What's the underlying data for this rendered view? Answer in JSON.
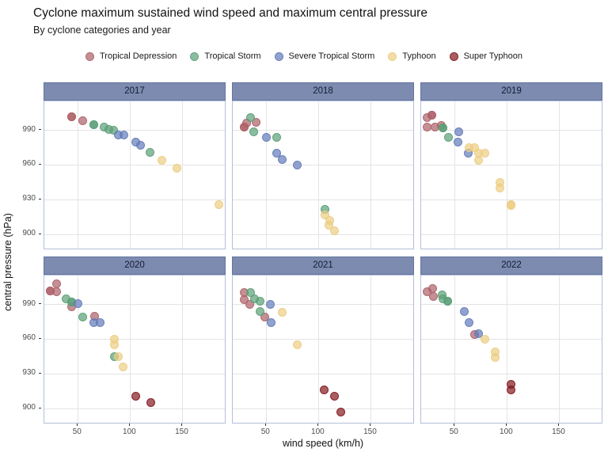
{
  "title": "Cyclone maximum sustained wind speed and maximum central pressure",
  "subtitle": "By cyclone categories and year",
  "colors": {
    "strip_fill": "#7d8bb0",
    "strip_border": "#64749f",
    "panel_border": "#b3bed9",
    "gridline": "#e4e4e4",
    "background": "#ffffff",
    "tick": "#333333"
  },
  "chart_data": {
    "type": "scatter",
    "x_label": "wind speed (km/h)",
    "y_label": "central pressure (hPa)",
    "x_ticks": [
      50,
      100,
      150
    ],
    "y_ticks": [
      990,
      960,
      930,
      900
    ],
    "x_domain": [
      18,
      192
    ],
    "y_domain": [
      886.5,
      1015
    ],
    "grid": "major-only",
    "legend_position": "top",
    "categories": [
      {
        "key": "td",
        "label": "Tropical Depression",
        "color": "#ad6168"
      },
      {
        "key": "ts",
        "label": "Tropical Storm",
        "color": "#5b9f77"
      },
      {
        "key": "sts",
        "label": "Severe Tropical Storm",
        "color": "#637bb9"
      },
      {
        "key": "ty",
        "label": "Typhoon",
        "color": "#eccd82"
      },
      {
        "key": "sty",
        "label": "Super Typhoon",
        "color": "#831a20"
      }
    ],
    "facets": [
      {
        "year": "2017",
        "points": [
          [
            44,
            1002,
            "td"
          ],
          [
            44,
            1002,
            "td"
          ],
          [
            55,
            998,
            "td"
          ],
          [
            65,
            995,
            "ts"
          ],
          [
            65,
            995,
            "ts"
          ],
          [
            75,
            993,
            "ts"
          ],
          [
            80,
            991,
            "ts"
          ],
          [
            84,
            990,
            "ts"
          ],
          [
            119,
            971,
            "ts"
          ],
          [
            89,
            986,
            "sts"
          ],
          [
            94,
            986,
            "sts"
          ],
          [
            105,
            980,
            "sts"
          ],
          [
            110,
            977,
            "sts"
          ],
          [
            130,
            964,
            "ty"
          ],
          [
            145,
            957,
            "ty"
          ],
          [
            185,
            926,
            "ty"
          ]
        ]
      },
      {
        "year": "2018",
        "points": [
          [
            29,
            993,
            "td"
          ],
          [
            29,
            993,
            "td"
          ],
          [
            31,
            996,
            "td"
          ],
          [
            40,
            997,
            "td"
          ],
          [
            35,
            1001,
            "ts"
          ],
          [
            38,
            989,
            "ts"
          ],
          [
            60,
            984,
            "ts"
          ],
          [
            106,
            922,
            "ts"
          ],
          [
            50,
            984,
            "sts"
          ],
          [
            60,
            970,
            "sts"
          ],
          [
            65,
            965,
            "sts"
          ],
          [
            80,
            960,
            "sts"
          ],
          [
            106,
            917,
            "ty"
          ],
          [
            111,
            912,
            "ty"
          ],
          [
            110,
            908,
            "ty"
          ],
          [
            115,
            903,
            "ty"
          ]
        ]
      },
      {
        "year": "2019",
        "points": [
          [
            24,
            1001,
            "td"
          ],
          [
            28,
            1003,
            "td"
          ],
          [
            28,
            1003,
            "td"
          ],
          [
            24,
            993,
            "td"
          ],
          [
            31,
            993,
            "td"
          ],
          [
            37,
            994,
            "td"
          ],
          [
            39,
            992,
            "ts"
          ],
          [
            39,
            992,
            "ts"
          ],
          [
            44,
            984,
            "ts"
          ],
          [
            54,
            989,
            "sts"
          ],
          [
            53,
            980,
            "sts"
          ],
          [
            63,
            970,
            "sts"
          ],
          [
            64,
            975,
            "ty"
          ],
          [
            69,
            975,
            "ty"
          ],
          [
            73,
            970,
            "ty"
          ],
          [
            79,
            970,
            "ty"
          ],
          [
            73,
            964,
            "ty"
          ],
          [
            93,
            945,
            "ty"
          ],
          [
            93,
            940,
            "ty"
          ],
          [
            104,
            926,
            "ty"
          ],
          [
            104,
            925,
            "ty"
          ]
        ]
      },
      {
        "year": "2020",
        "points": [
          [
            30,
            1008,
            "td"
          ],
          [
            24,
            1002,
            "td"
          ],
          [
            24,
            1002,
            "td"
          ],
          [
            30,
            1001,
            "td"
          ],
          [
            44,
            988,
            "td"
          ],
          [
            66,
            980,
            "td"
          ],
          [
            39,
            995,
            "ts"
          ],
          [
            44,
            992,
            "ts"
          ],
          [
            44,
            992,
            "ts"
          ],
          [
            55,
            979,
            "ts"
          ],
          [
            85,
            945,
            "ts"
          ],
          [
            50,
            991,
            "sts"
          ],
          [
            65,
            974,
            "sts"
          ],
          [
            71,
            974,
            "sts"
          ],
          [
            85,
            960,
            "ty"
          ],
          [
            85,
            955,
            "ty"
          ],
          [
            89,
            945,
            "ty"
          ],
          [
            93,
            936,
            "ty"
          ],
          [
            105,
            911,
            "sty"
          ],
          [
            120,
            905,
            "sty"
          ]
        ]
      },
      {
        "year": "2021",
        "points": [
          [
            29,
            1000,
            "td"
          ],
          [
            29,
            994,
            "td"
          ],
          [
            34,
            990,
            "td"
          ],
          [
            49,
            979,
            "td"
          ],
          [
            35,
            1000,
            "ts"
          ],
          [
            39,
            995,
            "ts"
          ],
          [
            44,
            993,
            "ts"
          ],
          [
            44,
            984,
            "ts"
          ],
          [
            54,
            990,
            "sts"
          ],
          [
            55,
            974,
            "sts"
          ],
          [
            65,
            983,
            "ty"
          ],
          [
            80,
            955,
            "ty"
          ],
          [
            105,
            916,
            "sty"
          ],
          [
            115,
            911,
            "sty"
          ],
          [
            121,
            897,
            "sty"
          ]
        ]
      },
      {
        "year": "2022",
        "points": [
          [
            29,
            1004,
            "td"
          ],
          [
            24,
            1001,
            "td"
          ],
          [
            30,
            997,
            "td"
          ],
          [
            69,
            964,
            "td"
          ],
          [
            38,
            998,
            "ts"
          ],
          [
            39,
            995,
            "ts"
          ],
          [
            43,
            993,
            "ts"
          ],
          [
            43,
            993,
            "ts"
          ],
          [
            59,
            984,
            "sts"
          ],
          [
            64,
            974,
            "sts"
          ],
          [
            73,
            965,
            "sts"
          ],
          [
            79,
            960,
            "ty"
          ],
          [
            89,
            949,
            "ty"
          ],
          [
            89,
            944,
            "ty"
          ],
          [
            104,
            921,
            "sty"
          ],
          [
            104,
            916,
            "sty"
          ]
        ]
      }
    ]
  }
}
